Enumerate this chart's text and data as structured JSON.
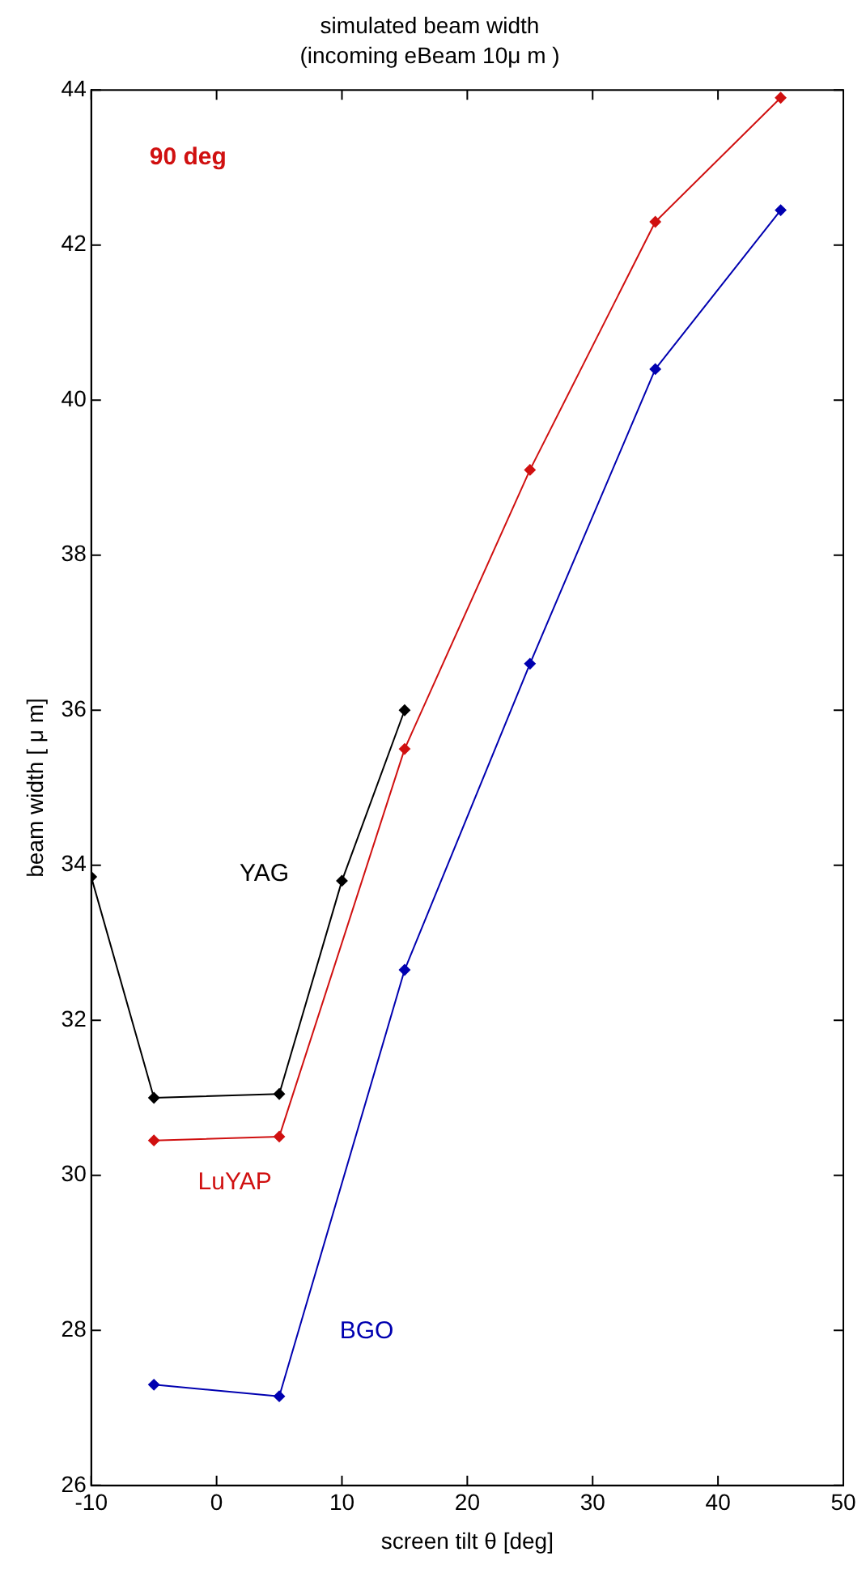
{
  "chart_data": {
    "type": "line",
    "title": "simulated beam width",
    "subtitle": "(incoming eBeam 10μ m )",
    "xlabel": "screen tilt θ [deg]",
    "ylabel": "beam width [ μ m]",
    "annotations": [
      "90 deg"
    ],
    "series": [
      {
        "name": "YAG",
        "color": "#000000",
        "x": [
          -10,
          -5,
          5,
          10,
          15
        ],
        "values": [
          33.85,
          31.0,
          31.05,
          33.8,
          36.0
        ]
      },
      {
        "name": "LuYAP",
        "color": "#d01010",
        "x": [
          -5,
          5,
          15,
          25,
          35,
          45
        ],
        "values": [
          30.45,
          30.5,
          35.5,
          39.1,
          42.3,
          43.9
        ]
      },
      {
        "name": "BGO",
        "color": "#0000b0",
        "x": [
          -5,
          5,
          15,
          25,
          35,
          45
        ],
        "values": [
          27.3,
          27.15,
          32.65,
          36.6,
          40.4,
          42.45
        ]
      }
    ],
    "xlim": [
      -10,
      50
    ],
    "xticks": [
      -10,
      0,
      10,
      20,
      30,
      40,
      50
    ],
    "ylim": [
      26,
      44
    ],
    "yticks": [
      26,
      28,
      30,
      32,
      34,
      36,
      38,
      40,
      42,
      44
    ],
    "grid": false,
    "legend": false,
    "marker": "diamond",
    "line_style": "solid"
  }
}
